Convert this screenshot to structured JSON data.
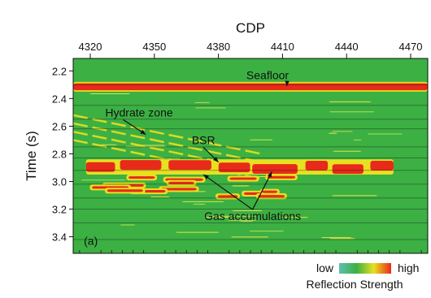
{
  "chart_data": {
    "type": "heatmap",
    "title": "",
    "xlabel": "CDP",
    "ylabel": "Time (s)",
    "x_axis_position": "top",
    "xlim": [
      4312,
      4478
    ],
    "ylim": [
      2.11,
      3.52
    ],
    "y_inverted": true,
    "xticks": [
      4320,
      4350,
      4380,
      4410,
      4440,
      4470
    ],
    "yticks": [
      2.2,
      2.4,
      2.6,
      2.8,
      3.0,
      3.2,
      3.4
    ],
    "background_level": "medium",
    "horizontal_lines_at": [
      2.3,
      2.45,
      2.55,
      2.62,
      2.75,
      2.83,
      2.92,
      3.02,
      3.12,
      3.2,
      3.3,
      3.42
    ],
    "reflectors": [
      {
        "label": "Seafloor",
        "x": [
          4312,
          4478
        ],
        "t_top": 2.29,
        "t_bottom": 2.34,
        "strength": "high"
      },
      {
        "label": "Hydrate zone",
        "x": [
          4312,
          4400
        ],
        "t_from": 2.52,
        "t_to": 2.8,
        "strength": "medium-high"
      },
      {
        "label": "BSR",
        "x": [
          4318,
          4462
        ],
        "t_top": 2.86,
        "t_bottom": 2.93,
        "strength": "high"
      },
      {
        "label": "Gas accumulations",
        "x": [
          4318,
          4420
        ],
        "t_top": 2.95,
        "t_bottom": 3.1,
        "strength": "high"
      }
    ],
    "annotations": [
      {
        "text": "Seafloor",
        "x": 4403,
        "t": 2.23
      },
      {
        "text": "Hydrate zone",
        "x": 4327,
        "t": 2.5
      },
      {
        "text": "BSR",
        "x": 4373,
        "t": 2.7
      },
      {
        "text": "Gas accumulations",
        "x": 4396,
        "t": 3.25
      },
      {
        "text": "(a)",
        "x": 4317,
        "t": 3.43
      }
    ],
    "colorbar": {
      "label": "Reflection Strength",
      "low_label": "low",
      "high_label": "high",
      "colors": [
        "#5cbfb0",
        "#3cb043",
        "#e8e020",
        "#e82a1a"
      ]
    }
  }
}
